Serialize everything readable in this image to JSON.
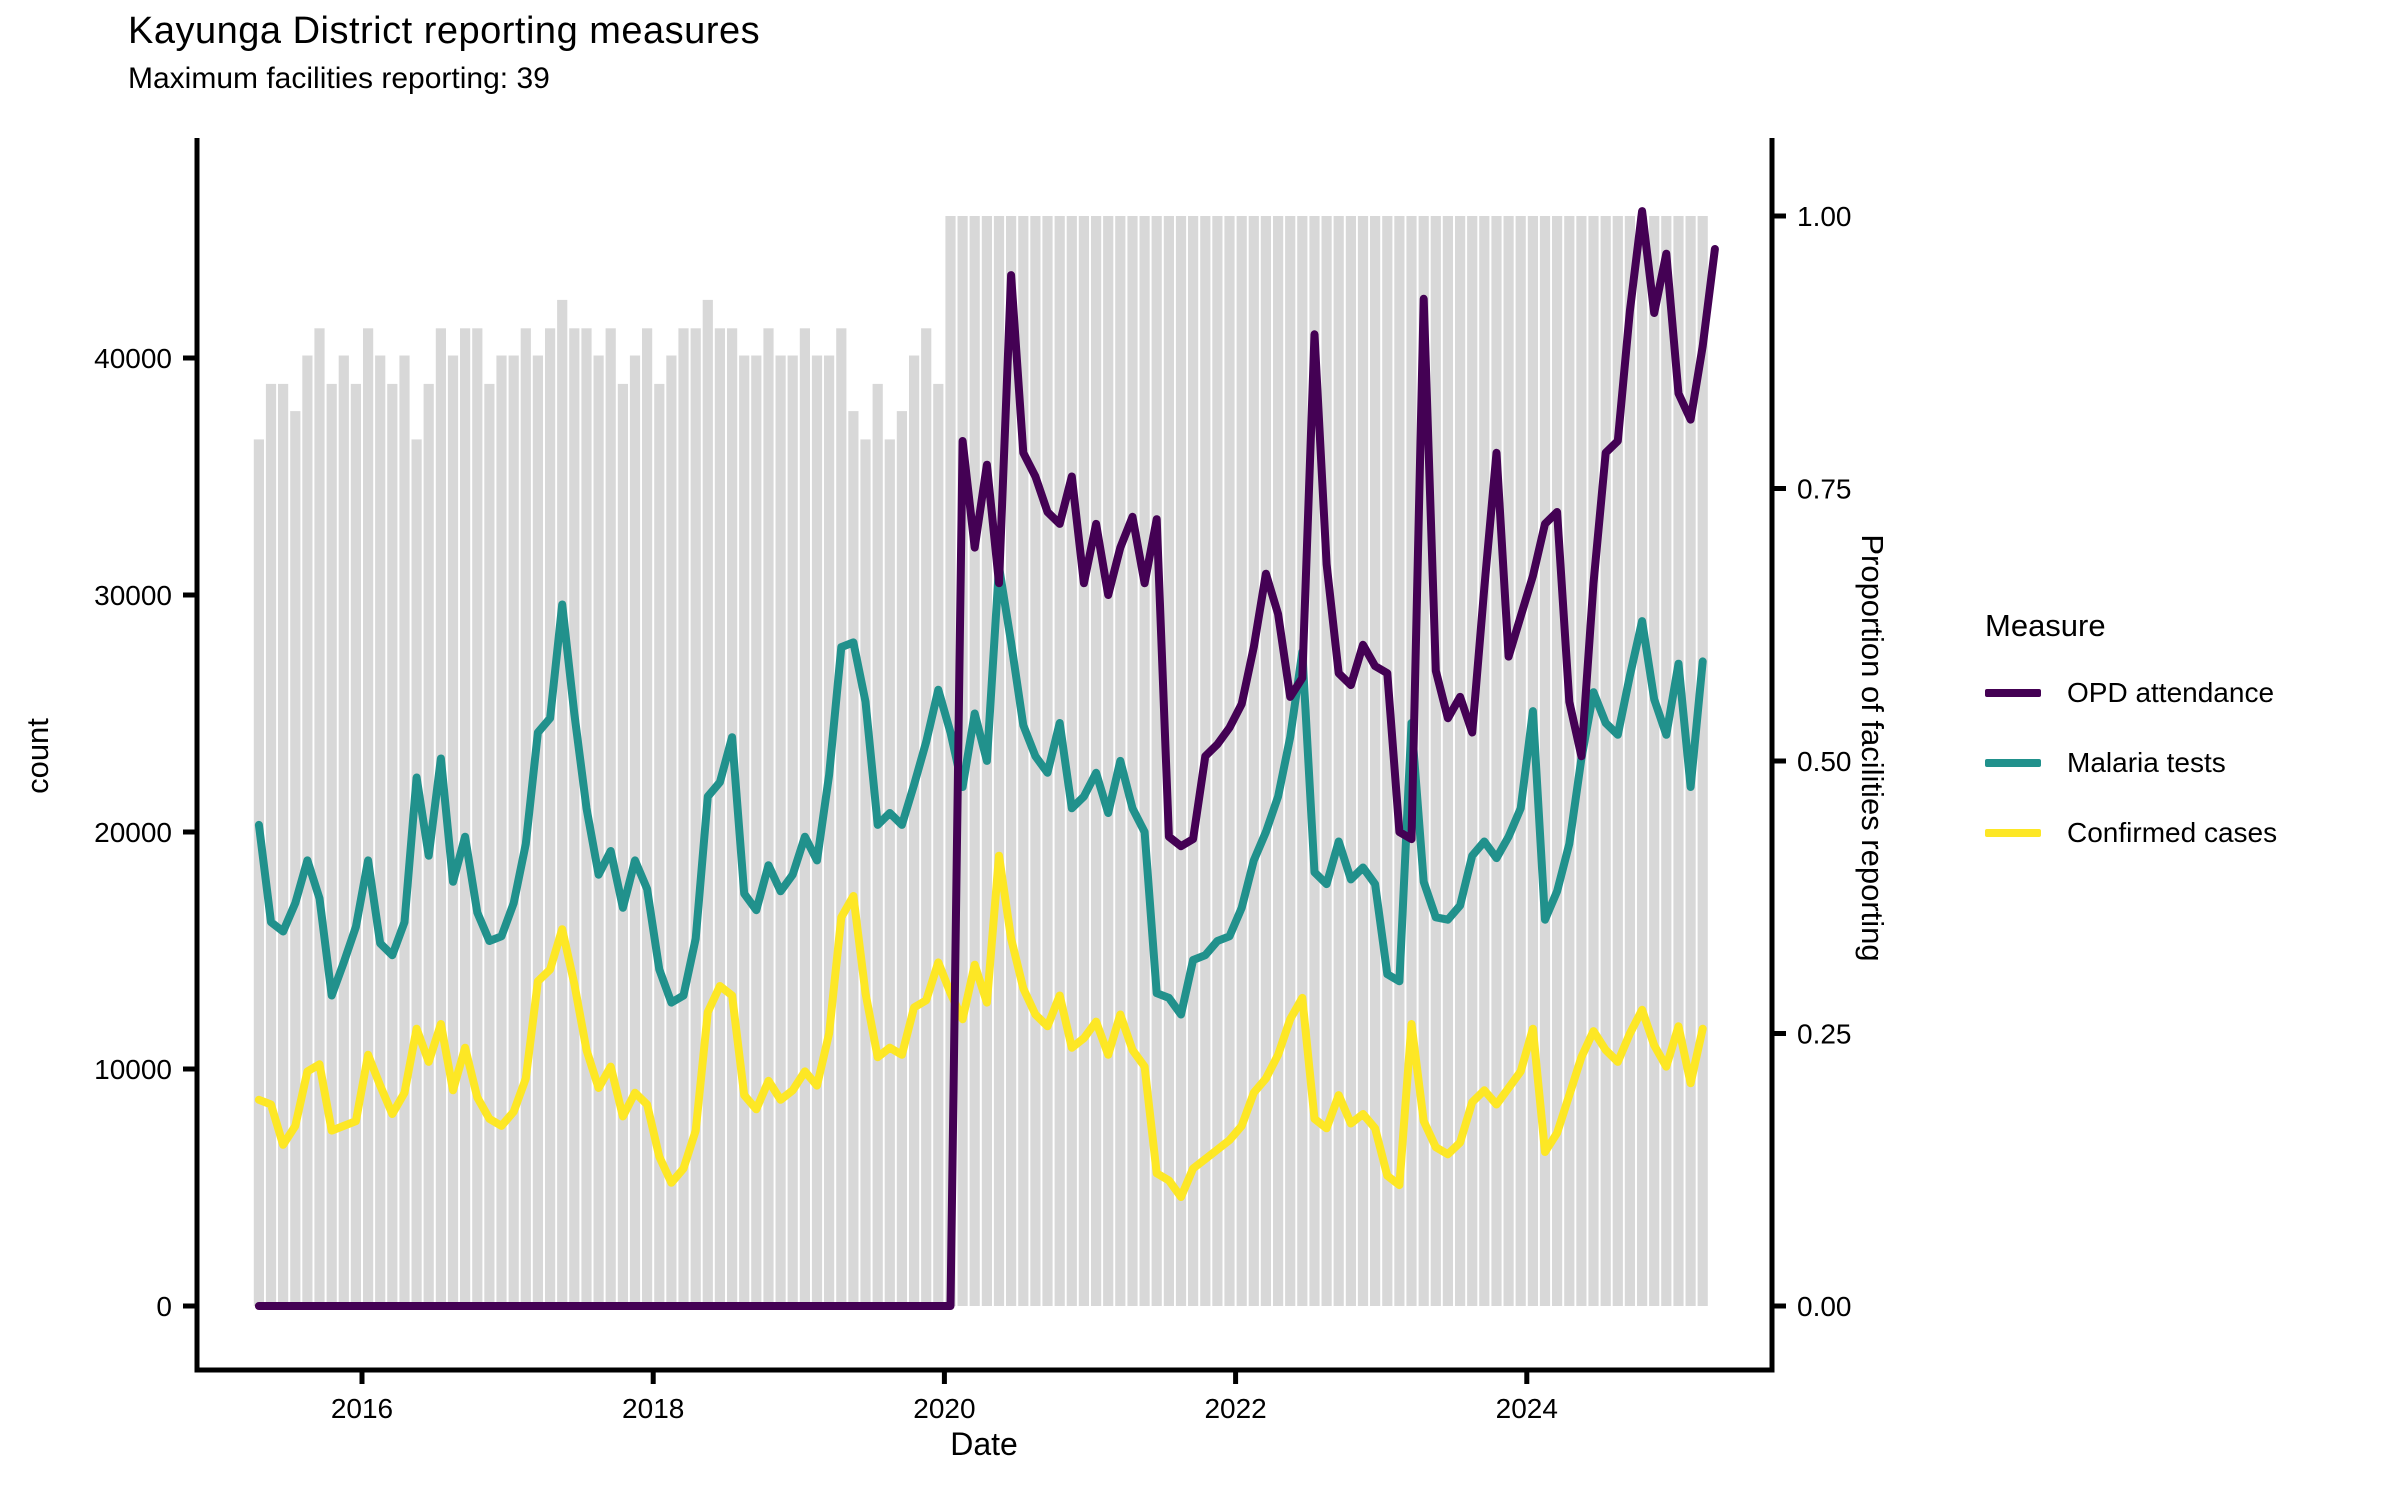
{
  "title": "Kayunga District reporting measures",
  "subtitle": "Maximum facilities reporting: 39",
  "x_axis": {
    "label": "Date",
    "tick_labels": [
      "2016",
      "2018",
      "2020",
      "2022",
      "2024"
    ]
  },
  "y_axis_left": {
    "label": "count",
    "tick_labels": [
      "0",
      "10000",
      "20000",
      "30000",
      "40000"
    ]
  },
  "y_axis_right": {
    "label": "Proportion of facilities reporting",
    "tick_labels": [
      "0.00",
      "0.25",
      "0.50",
      "0.75",
      "1.00"
    ]
  },
  "legend": {
    "title": "Measure",
    "items": [
      {
        "label": "OPD attendance",
        "color": "#440154"
      },
      {
        "label": "Malaria tests",
        "color": "#21918c"
      },
      {
        "label": "Confirmed cases",
        "color": "#fde725"
      }
    ]
  },
  "chart_data": {
    "type": "line",
    "title": "Kayunga District reporting measures",
    "subtitle": "Maximum facilities reporting: 39",
    "xlabel": "Date",
    "ylabel_left": "count",
    "ylabel_right": "Proportion of facilities reporting",
    "frequency": "monthly",
    "x_start": "2015-04",
    "x_end": "2025-03",
    "x_tick_years": [
      2016,
      2018,
      2020,
      2022,
      2024
    ],
    "left_axis_ticks": [
      0,
      10000,
      20000,
      30000,
      40000
    ],
    "left_ylim": [
      0,
      46500
    ],
    "right_axis_ticks": [
      0.0,
      0.25,
      0.5,
      0.75,
      1.0
    ],
    "right_ylim": [
      0,
      1.07
    ],
    "grid": false,
    "legend_position": "right",
    "max_facilities": 39,
    "bars": {
      "name": "Proportion of facilities reporting",
      "axis": "right",
      "color": "#d8d8d8",
      "values": [
        0.795,
        0.846,
        0.846,
        0.821,
        0.872,
        0.897,
        0.846,
        0.872,
        0.846,
        0.897,
        0.872,
        0.846,
        0.872,
        0.795,
        0.846,
        0.897,
        0.872,
        0.897,
        0.897,
        0.846,
        0.872,
        0.872,
        0.897,
        0.872,
        0.897,
        0.923,
        0.897,
        0.897,
        0.872,
        0.897,
        0.846,
        0.872,
        0.897,
        0.846,
        0.872,
        0.897,
        0.897,
        0.923,
        0.897,
        0.897,
        0.872,
        0.872,
        0.897,
        0.872,
        0.872,
        0.897,
        0.872,
        0.872,
        0.897,
        0.821,
        0.795,
        0.846,
        0.795,
        0.821,
        0.872,
        0.897,
        0.846,
        1.0,
        1.0,
        1.0,
        1.0,
        1.0,
        1.0,
        1.0,
        1.0,
        1.0,
        1.0,
        1.0,
        1.0,
        1.0,
        1.0,
        1.0,
        1.0,
        1.0,
        1.0,
        1.0,
        1.0,
        1.0,
        1.0,
        1.0,
        1.0,
        1.0,
        1.0,
        1.0,
        1.0,
        1.0,
        1.0,
        1.0,
        1.0,
        1.0,
        1.0,
        1.0,
        1.0,
        1.0,
        1.0,
        1.0,
        1.0,
        1.0,
        1.0,
        1.0,
        1.0,
        1.0,
        1.0,
        1.0,
        1.0,
        1.0,
        1.0,
        1.0,
        1.0,
        1.0,
        1.0,
        1.0,
        1.0,
        1.0,
        1.0,
        1.0,
        1.0,
        1.0,
        1.0,
        1.0
      ]
    },
    "series": [
      {
        "name": "OPD attendance",
        "axis": "left",
        "color": "#440154",
        "values": [
          0,
          0,
          0,
          0,
          0,
          0,
          0,
          0,
          0,
          0,
          0,
          0,
          0,
          0,
          0,
          0,
          0,
          0,
          0,
          0,
          0,
          0,
          0,
          0,
          0,
          0,
          0,
          0,
          0,
          0,
          0,
          0,
          0,
          0,
          0,
          0,
          0,
          0,
          0,
          0,
          0,
          0,
          0,
          0,
          0,
          0,
          0,
          0,
          0,
          0,
          0,
          0,
          0,
          0,
          0,
          0,
          0,
          0,
          36500,
          32000,
          35500,
          30500,
          43500,
          36000,
          35000,
          33500,
          33000,
          35000,
          30500,
          33000,
          30000,
          32000,
          33300,
          30500,
          33200,
          19800,
          19400,
          19700,
          23200,
          23700,
          24400,
          25400,
          27800,
          30900,
          29200,
          25700,
          26500,
          41000,
          31300,
          26700,
          26200,
          27900,
          27000,
          26700,
          20000,
          19700,
          42500,
          26800,
          24800,
          25700,
          24200,
          30300,
          36000,
          27400,
          29100,
          30800,
          33000,
          33500,
          25500,
          23200,
          30500,
          36000,
          36500,
          42000,
          46200,
          41900,
          44400,
          38500,
          37400,
          40500,
          44600
        ]
      },
      {
        "name": "Malaria tests",
        "axis": "left",
        "color": "#21918c",
        "values": [
          20300,
          16200,
          15800,
          17000,
          18800,
          17200,
          13100,
          14500,
          16000,
          18800,
          15300,
          14800,
          16200,
          22300,
          19000,
          23100,
          17900,
          19800,
          16600,
          15400,
          15600,
          17000,
          19500,
          24200,
          24800,
          29600,
          25000,
          21000,
          18200,
          19200,
          16800,
          18800,
          17600,
          14200,
          12800,
          13100,
          15500,
          21500,
          22100,
          24000,
          17400,
          16700,
          18600,
          17500,
          18200,
          19800,
          18800,
          22400,
          27800,
          28000,
          25500,
          20300,
          20800,
          20300,
          22000,
          23800,
          26000,
          24200,
          21900,
          25000,
          23000,
          31200,
          28000,
          24500,
          23200,
          22500,
          24600,
          21000,
          21500,
          22500,
          20800,
          23000,
          21000,
          20000,
          13200,
          13000,
          12300,
          14600,
          14800,
          15400,
          15600,
          16800,
          18800,
          20000,
          21500,
          24000,
          27600,
          18300,
          17800,
          19600,
          18000,
          18500,
          17800,
          14000,
          13700,
          24600,
          17900,
          16400,
          16300,
          16900,
          19000,
          19600,
          18900,
          19800,
          21000,
          25100,
          16300,
          17500,
          19500,
          23100,
          25900,
          24600,
          24100,
          26600,
          28900,
          25600,
          24100,
          27100,
          21900,
          27200
        ]
      },
      {
        "name": "Confirmed cases",
        "axis": "left",
        "color": "#fde725",
        "values": [
          8700,
          8500,
          6800,
          7600,
          9900,
          10200,
          7400,
          7600,
          7800,
          10600,
          9300,
          8100,
          9000,
          11700,
          10300,
          11900,
          9100,
          10900,
          8800,
          7900,
          7600,
          8200,
          9600,
          13700,
          14200,
          15900,
          13600,
          10800,
          9200,
          10100,
          8000,
          9000,
          8500,
          6300,
          5200,
          5800,
          7400,
          12400,
          13500,
          13100,
          8900,
          8300,
          9500,
          8700,
          9100,
          9900,
          9300,
          11500,
          16400,
          17300,
          13200,
          10500,
          10900,
          10600,
          12600,
          12900,
          14500,
          13200,
          12100,
          14400,
          12800,
          19000,
          15500,
          13400,
          12300,
          11800,
          13100,
          10900,
          11300,
          12000,
          10600,
          12300,
          10800,
          10100,
          5600,
          5300,
          4600,
          5800,
          6200,
          6600,
          7000,
          7600,
          9000,
          9600,
          10600,
          12100,
          13000,
          7900,
          7500,
          8900,
          7700,
          8100,
          7500,
          5500,
          5100,
          11900,
          7800,
          6700,
          6400,
          6900,
          8600,
          9100,
          8500,
          9200,
          9900,
          11700,
          6500,
          7300,
          8900,
          10500,
          11600,
          10800,
          10300,
          11500,
          12500,
          11000,
          10100,
          11800,
          9400,
          11700
        ]
      }
    ]
  }
}
